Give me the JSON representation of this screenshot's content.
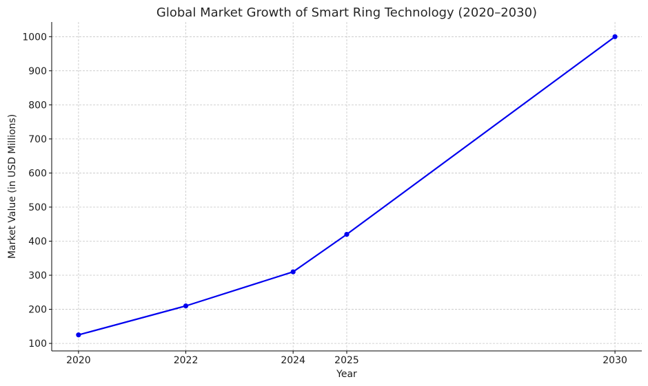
{
  "chart_data": {
    "type": "line",
    "title": "Global Market Growth of Smart Ring Technology (2020–2030)",
    "xlabel": "Year",
    "ylabel": "Market Value (in USD Millions)",
    "x_ticks": [
      2020,
      2022,
      2024,
      2025,
      2030
    ],
    "y_ticks": [
      100,
      200,
      300,
      400,
      500,
      600,
      700,
      800,
      900,
      1000
    ],
    "xlim": [
      2019.5,
      2030.5
    ],
    "ylim": [
      78,
      1043
    ],
    "grid": true,
    "series": [
      {
        "color": "#0000ee",
        "marker": "circle",
        "x": [
          2020,
          2022,
          2024,
          2025,
          2030
        ],
        "values": [
          125,
          210,
          310,
          420,
          1000
        ]
      }
    ]
  }
}
